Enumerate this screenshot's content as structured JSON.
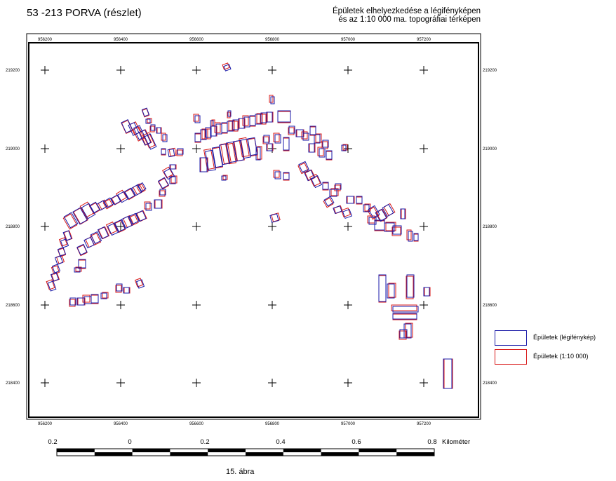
{
  "header": {
    "title": "53 -213 PORVA (részlet)",
    "subtitle_line1": "Épületek elhelyezkedése a légifényképen",
    "subtitle_line2": "és az 1:10 000 ma. topográfiai térképen"
  },
  "map": {
    "x_ticks": [
      "956200",
      "956400",
      "956600",
      "956800",
      "957000",
      "957200"
    ],
    "y_ticks": [
      "219200",
      "219000",
      "218800",
      "218600",
      "218400"
    ],
    "buildings_photo_color": "#1a1aa8",
    "buildings_map_color": "#d81818"
  },
  "legend": {
    "items": [
      {
        "label": "Épületek (légifénykép)",
        "color": "#1a1aa8"
      },
      {
        "label": "Épületek (1:10 000)",
        "color": "#d81818"
      }
    ]
  },
  "scale_bar": {
    "labels": [
      "0.2",
      "0",
      "0.2",
      "0.4",
      "0.6",
      "0.8"
    ],
    "unit": "Kilométer"
  },
  "caption": "15. ábra"
}
